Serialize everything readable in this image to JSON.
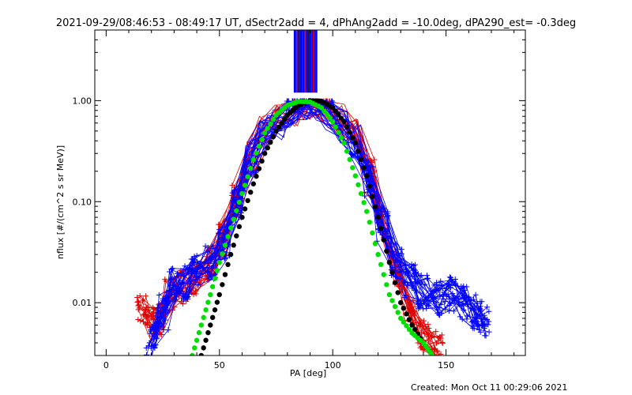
{
  "title": "2021-09-29/08:46:53 - 08:49:17 UT, dSectr2add = 4, dPhAng2add = -10.0deg, dPA290_est= -0.3deg",
  "footer": "Created: Mon Oct 11 00:29:06 2021",
  "colors": {
    "axes": "#000000",
    "red_series": "#e00000",
    "blue_series": "#0000ff",
    "black_fit": "#000000",
    "green_fit": "#00e000",
    "background": "#ffffff"
  },
  "chart_data": {
    "type": "line",
    "xlabel": "PA [deg]",
    "ylabel": "nflux [#/(cm^2 s sr MeV)]",
    "xlim": [
      -5,
      185
    ],
    "ylim": [
      0.003,
      5.0
    ],
    "yscale": "log",
    "x_ticks": [
      0,
      50,
      100,
      150
    ],
    "x_tick_labels": [
      "0",
      "50",
      "100",
      "150"
    ],
    "y_ticks": [
      0.01,
      0.1,
      1.0
    ],
    "y_tick_labels": [
      "0.01",
      "0.10",
      "1.00"
    ],
    "grid": false,
    "legend": "none",
    "red_data": {
      "x": [
        16,
        20,
        24,
        28,
        33,
        40,
        46,
        52,
        58,
        64,
        70,
        76,
        82,
        88,
        92,
        98,
        104,
        110,
        116,
        122,
        128,
        134,
        140,
        146
      ],
      "y": [
        0.009,
        0.006,
        0.007,
        0.012,
        0.014,
        0.018,
        0.025,
        0.045,
        0.11,
        0.3,
        0.5,
        0.62,
        0.82,
        0.97,
        0.95,
        0.78,
        0.62,
        0.45,
        0.18,
        0.06,
        0.02,
        0.009,
        0.005,
        0.004
      ]
    },
    "blue_data": {
      "x": [
        20,
        25,
        30,
        35,
        40,
        46,
        52,
        58,
        64,
        70,
        76,
        82,
        88,
        92,
        98,
        104,
        110,
        116,
        122,
        128,
        134,
        140,
        146,
        152,
        158,
        163,
        167
      ],
      "y": [
        0.004,
        0.008,
        0.015,
        0.016,
        0.02,
        0.025,
        0.04,
        0.1,
        0.28,
        0.48,
        0.6,
        0.8,
        0.97,
        0.96,
        0.72,
        0.55,
        0.4,
        0.17,
        0.06,
        0.025,
        0.016,
        0.013,
        0.011,
        0.012,
        0.01,
        0.008,
        0.007
      ]
    },
    "blue_bars_x_range": [
      83,
      93
    ],
    "black_fit": {
      "x": [
        42,
        46,
        50,
        55,
        60,
        65,
        70,
        75,
        80,
        85,
        90,
        95,
        100,
        105,
        110,
        115,
        120,
        125,
        130,
        135,
        140,
        144
      ],
      "y": [
        0.003,
        0.006,
        0.012,
        0.03,
        0.07,
        0.15,
        0.3,
        0.5,
        0.72,
        0.9,
        1.0,
        0.99,
        0.85,
        0.62,
        0.38,
        0.18,
        0.07,
        0.025,
        0.01,
        0.006,
        0.004,
        0.003
      ]
    },
    "green_fit": {
      "x": [
        38,
        42,
        46,
        50,
        55,
        60,
        65,
        70,
        75,
        80,
        85,
        90,
        95,
        100,
        105,
        110,
        115,
        120,
        125,
        130,
        135,
        140,
        144
      ],
      "y": [
        0.003,
        0.006,
        0.012,
        0.025,
        0.055,
        0.12,
        0.26,
        0.48,
        0.72,
        0.9,
        0.98,
        0.97,
        0.85,
        0.62,
        0.38,
        0.18,
        0.08,
        0.03,
        0.012,
        0.007,
        0.005,
        0.004,
        0.003
      ]
    }
  }
}
